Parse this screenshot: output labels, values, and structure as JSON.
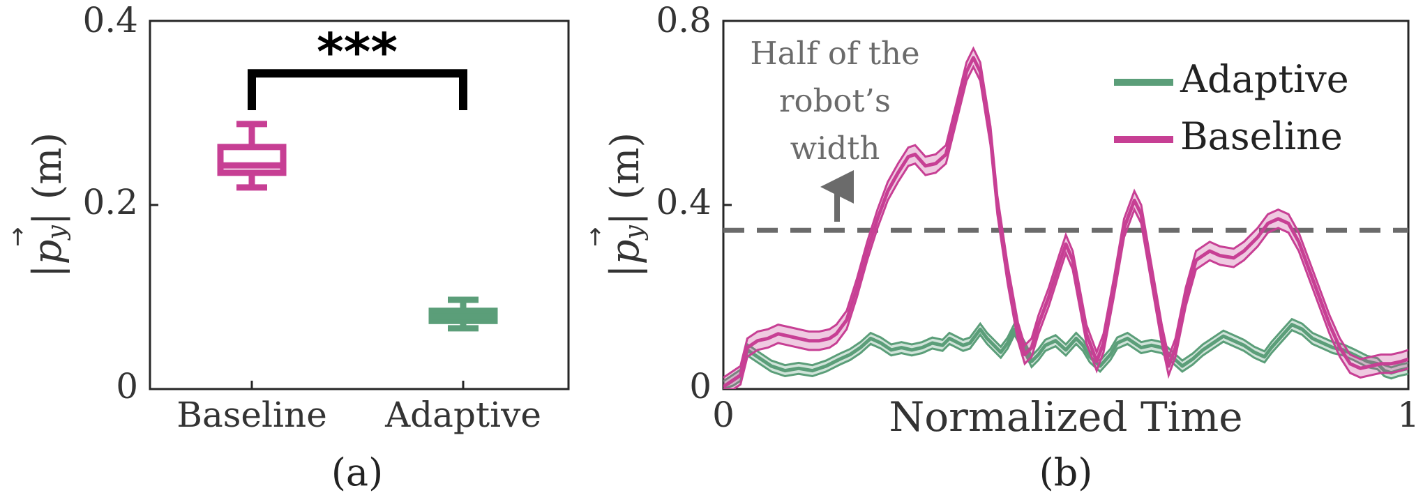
{
  "chart_data": [
    {
      "type": "box",
      "panel_label": "(a)",
      "ylabel": "|p_y| (m)",
      "ylim": [
        0,
        0.4
      ],
      "yticks": [
        "0",
        "0.2",
        "0.4"
      ],
      "categories": [
        "Baseline",
        "Adaptive"
      ],
      "boxes": [
        {
          "category": "Baseline",
          "min": 0.219,
          "q1": 0.235,
          "median": 0.243,
          "q3": 0.263,
          "max": 0.288,
          "color": "#C73F94"
        },
        {
          "category": "Adaptive",
          "min": 0.066,
          "q1": 0.074,
          "median": 0.079,
          "q3": 0.085,
          "max": 0.097,
          "color": "#5B9E79"
        }
      ],
      "significance": {
        "text": "***",
        "between": [
          "Baseline",
          "Adaptive"
        ],
        "bracket_y": 0.343,
        "leg_bottom": 0.303
      }
    },
    {
      "type": "line",
      "panel_label": "(b)",
      "xlabel": "Normalized Time",
      "ylabel": "|p_y| (m)",
      "xlim": [
        0,
        1
      ],
      "ylim": [
        0,
        0.8
      ],
      "xticks": [
        "0",
        "1"
      ],
      "yticks": [
        "0",
        "0.4",
        "0.8"
      ],
      "legend": {
        "position": "top-right"
      },
      "series": [
        {
          "name": "Adaptive",
          "color": "#5B9E79",
          "band": 0.012,
          "points": [
            [
              0,
              0.005
            ],
            [
              0.015,
              0.02
            ],
            [
              0.025,
              0.03
            ],
            [
              0.035,
              0.085
            ],
            [
              0.05,
              0.07
            ],
            [
              0.07,
              0.05
            ],
            [
              0.09,
              0.04
            ],
            [
              0.11,
              0.045
            ],
            [
              0.13,
              0.04
            ],
            [
              0.15,
              0.05
            ],
            [
              0.17,
              0.065
            ],
            [
              0.185,
              0.075
            ],
            [
              0.2,
              0.09
            ],
            [
              0.215,
              0.11
            ],
            [
              0.23,
              0.1
            ],
            [
              0.245,
              0.085
            ],
            [
              0.26,
              0.09
            ],
            [
              0.275,
              0.085
            ],
            [
              0.29,
              0.09
            ],
            [
              0.305,
              0.1
            ],
            [
              0.32,
              0.095
            ],
            [
              0.33,
              0.11
            ],
            [
              0.35,
              0.095
            ],
            [
              0.36,
              0.1
            ],
            [
              0.375,
              0.13
            ],
            [
              0.385,
              0.11
            ],
            [
              0.395,
              0.095
            ],
            [
              0.405,
              0.08
            ],
            [
              0.415,
              0.1
            ],
            [
              0.425,
              0.13
            ],
            [
              0.44,
              0.09
            ],
            [
              0.45,
              0.06
            ],
            [
              0.46,
              0.075
            ],
            [
              0.47,
              0.095
            ],
            [
              0.485,
              0.105
            ],
            [
              0.5,
              0.085
            ],
            [
              0.515,
              0.11
            ],
            [
              0.525,
              0.095
            ],
            [
              0.535,
              0.07
            ],
            [
              0.55,
              0.05
            ],
            [
              0.565,
              0.075
            ],
            [
              0.575,
              0.1
            ],
            [
              0.59,
              0.11
            ],
            [
              0.61,
              0.09
            ],
            [
              0.625,
              0.095
            ],
            [
              0.64,
              0.09
            ],
            [
              0.655,
              0.07
            ],
            [
              0.67,
              0.05
            ],
            [
              0.685,
              0.065
            ],
            [
              0.7,
              0.085
            ],
            [
              0.715,
              0.1
            ],
            [
              0.73,
              0.115
            ],
            [
              0.745,
              0.105
            ],
            [
              0.76,
              0.095
            ],
            [
              0.775,
              0.08
            ],
            [
              0.79,
              0.07
            ],
            [
              0.8,
              0.09
            ],
            [
              0.815,
              0.115
            ],
            [
              0.83,
              0.14
            ],
            [
              0.845,
              0.13
            ],
            [
              0.86,
              0.11
            ],
            [
              0.875,
              0.1
            ],
            [
              0.89,
              0.09
            ],
            [
              0.905,
              0.085
            ],
            [
              0.92,
              0.075
            ],
            [
              0.94,
              0.06
            ],
            [
              0.955,
              0.055
            ],
            [
              0.965,
              0.04
            ],
            [
              0.975,
              0.035
            ],
            [
              0.985,
              0.04
            ],
            [
              1.0,
              0.045
            ]
          ]
        },
        {
          "name": "Baseline",
          "color": "#C73F94",
          "band": 0.02,
          "points": [
            [
              0,
              0.005
            ],
            [
              0.015,
              0.02
            ],
            [
              0.025,
              0.03
            ],
            [
              0.035,
              0.09
            ],
            [
              0.05,
              0.105
            ],
            [
              0.065,
              0.11
            ],
            [
              0.08,
              0.12
            ],
            [
              0.095,
              0.115
            ],
            [
              0.11,
              0.11
            ],
            [
              0.125,
              0.105
            ],
            [
              0.14,
              0.105
            ],
            [
              0.155,
              0.11
            ],
            [
              0.165,
              0.12
            ],
            [
              0.18,
              0.15
            ],
            [
              0.195,
              0.22
            ],
            [
              0.21,
              0.3
            ],
            [
              0.225,
              0.37
            ],
            [
              0.24,
              0.43
            ],
            [
              0.255,
              0.47
            ],
            [
              0.27,
              0.505
            ],
            [
              0.28,
              0.51
            ],
            [
              0.295,
              0.485
            ],
            [
              0.31,
              0.49
            ],
            [
              0.325,
              0.51
            ],
            [
              0.34,
              0.6
            ],
            [
              0.355,
              0.69
            ],
            [
              0.365,
              0.72
            ],
            [
              0.375,
              0.69
            ],
            [
              0.39,
              0.55
            ],
            [
              0.4,
              0.4
            ],
            [
              0.415,
              0.25
            ],
            [
              0.43,
              0.125
            ],
            [
              0.44,
              0.075
            ],
            [
              0.45,
              0.09
            ],
            [
              0.46,
              0.14
            ],
            [
              0.475,
              0.2
            ],
            [
              0.49,
              0.27
            ],
            [
              0.5,
              0.315
            ],
            [
              0.51,
              0.28
            ],
            [
              0.52,
              0.2
            ],
            [
              0.53,
              0.12
            ],
            [
              0.545,
              0.06
            ],
            [
              0.555,
              0.1
            ],
            [
              0.57,
              0.22
            ],
            [
              0.585,
              0.35
            ],
            [
              0.6,
              0.41
            ],
            [
              0.61,
              0.38
            ],
            [
              0.625,
              0.25
            ],
            [
              0.64,
              0.12
            ],
            [
              0.65,
              0.05
            ],
            [
              0.66,
              0.09
            ],
            [
              0.675,
              0.2
            ],
            [
              0.69,
              0.28
            ],
            [
              0.71,
              0.3
            ],
            [
              0.725,
              0.29
            ],
            [
              0.745,
              0.285
            ],
            [
              0.76,
              0.3
            ],
            [
              0.78,
              0.33
            ],
            [
              0.795,
              0.36
            ],
            [
              0.81,
              0.37
            ],
            [
              0.825,
              0.36
            ],
            [
              0.84,
              0.32
            ],
            [
              0.855,
              0.26
            ],
            [
              0.87,
              0.2
            ],
            [
              0.885,
              0.14
            ],
            [
              0.9,
              0.09
            ],
            [
              0.915,
              0.055
            ],
            [
              0.93,
              0.045
            ],
            [
              0.945,
              0.05
            ],
            [
              0.96,
              0.055
            ],
            [
              0.975,
              0.055
            ],
            [
              0.99,
              0.06
            ],
            [
              1.0,
              0.065
            ]
          ]
        }
      ],
      "threshold": {
        "y": 0.345,
        "label_lines": [
          "Half of the",
          "robot’s",
          "width"
        ],
        "color": "#6b6b6b"
      }
    }
  ]
}
